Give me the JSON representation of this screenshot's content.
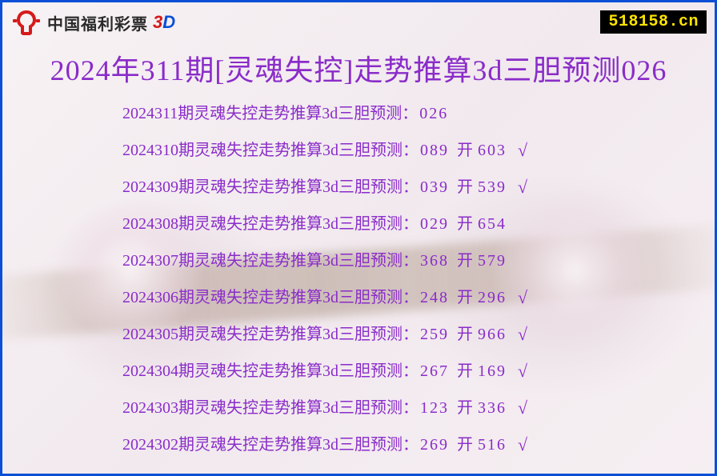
{
  "header": {
    "brand_cn": "中国福利彩票",
    "brand_3d_three": "3",
    "brand_3d_dee": "D",
    "logo_color_red": "#d61a1a"
  },
  "site_badge": "518158.cn",
  "title": "2024年311期[灵魂失控]走势推算3d三胆预测026",
  "row_label_prefix": "期灵魂失控走势推算3d三胆预测：",
  "open_label": "开",
  "tick_char": "√",
  "colors": {
    "border": "#0a4fd6",
    "text": "#8a2cc9",
    "badge_bg": "#000000",
    "badge_fg": "#ffe400"
  },
  "rows": [
    {
      "period": "2024311",
      "pred": "026",
      "open": "",
      "hit": false
    },
    {
      "period": "2024310",
      "pred": "089",
      "open": "603",
      "hit": true
    },
    {
      "period": "2024309",
      "pred": "039",
      "open": "539",
      "hit": true
    },
    {
      "period": "2024308",
      "pred": "029",
      "open": "654",
      "hit": false
    },
    {
      "period": "2024307",
      "pred": "368",
      "open": "579",
      "hit": false
    },
    {
      "period": "2024306",
      "pred": "248",
      "open": "296",
      "hit": true
    },
    {
      "period": "2024305",
      "pred": "259",
      "open": "966",
      "hit": true
    },
    {
      "period": "2024304",
      "pred": "267",
      "open": "169",
      "hit": true
    },
    {
      "period": "2024303",
      "pred": "123",
      "open": "336",
      "hit": true
    },
    {
      "period": "2024302",
      "pred": "269",
      "open": "516",
      "hit": true
    }
  ]
}
